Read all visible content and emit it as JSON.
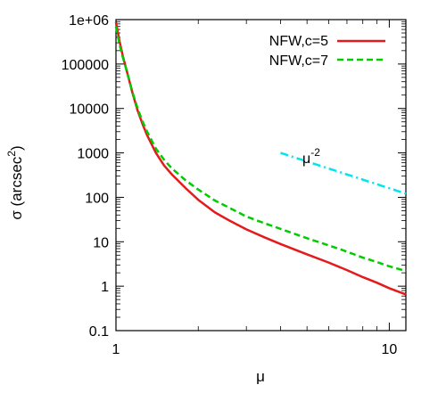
{
  "chart_data": {
    "type": "line",
    "xlabel": "μ",
    "ylabel_main": "σ (arcsec",
    "ylabel_sup": "2",
    "ylabel_close": ")",
    "xscale": "log",
    "yscale": "log",
    "xlim": [
      1,
      11.5
    ],
    "ylim": [
      0.1,
      1000000
    ],
    "grid": false,
    "legend_position": "top-right",
    "x_ticks": [
      {
        "value": 1,
        "label": "1"
      },
      {
        "value": 10,
        "label": "10"
      }
    ],
    "y_ticks": [
      {
        "value": 0.1,
        "label": "0.1"
      },
      {
        "value": 1,
        "label": "1"
      },
      {
        "value": 10,
        "label": "10"
      },
      {
        "value": 100,
        "label": "100"
      },
      {
        "value": 1000,
        "label": "1000"
      },
      {
        "value": 10000,
        "label": "10000"
      },
      {
        "value": 100000,
        "label": "100000"
      },
      {
        "value": 1000000,
        "label": "1e+06"
      }
    ],
    "series": [
      {
        "name": "NFW,c=5",
        "color": "#e41a1c",
        "dash": "solid",
        "x": [
          1.0,
          1.03,
          1.06,
          1.1,
          1.15,
          1.2,
          1.25,
          1.3,
          1.4,
          1.5,
          1.6,
          1.8,
          2.0,
          2.3,
          2.6,
          3.0,
          3.5,
          4.0,
          5.0,
          6.0,
          7.0,
          8.0,
          9.0,
          10.0,
          11.5
        ],
        "y": [
          870000,
          330000,
          150000,
          63000,
          22000,
          9000,
          4500,
          2500,
          1000,
          520,
          330,
          160,
          88,
          46,
          30,
          19,
          12.5,
          8.9,
          5.2,
          3.4,
          2.3,
          1.6,
          1.2,
          0.9,
          0.65
        ]
      },
      {
        "name": "NFW,c=7",
        "color": "#00cc00",
        "dash": "dashed",
        "x": [
          1.0,
          1.03,
          1.06,
          1.1,
          1.15,
          1.2,
          1.25,
          1.3,
          1.4,
          1.5,
          1.6,
          1.8,
          2.0,
          2.3,
          2.6,
          3.0,
          3.5,
          4.0,
          5.0,
          6.0,
          7.0,
          8.0,
          9.0,
          10.0,
          11.5
        ],
        "y": [
          700000,
          280000,
          140000,
          63000,
          23000,
          10000,
          5200,
          3000,
          1250,
          700,
          450,
          240,
          150,
          85,
          58,
          37,
          26,
          19.5,
          12,
          8.3,
          6.0,
          4.4,
          3.5,
          2.8,
          2.2
        ]
      },
      {
        "label": "μ",
        "label_sup": "-2",
        "color": "#00e5ee",
        "dash": "dashdot",
        "x": [
          4.0,
          11.5
        ],
        "y": [
          1000,
          121
        ]
      }
    ]
  }
}
